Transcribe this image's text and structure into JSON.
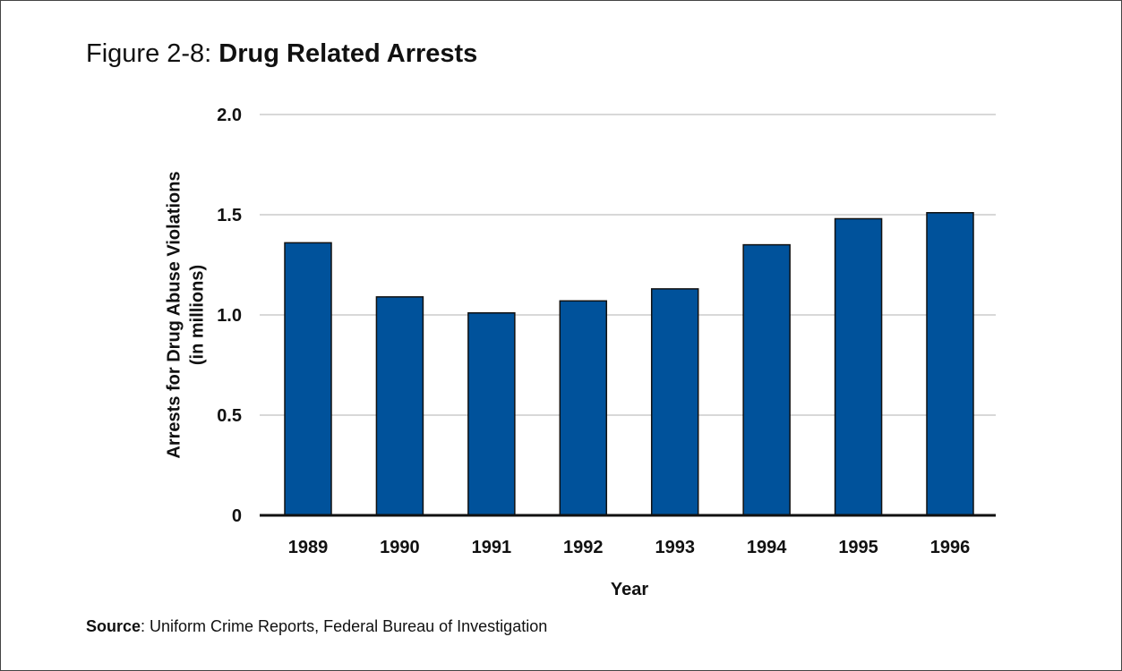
{
  "figure": {
    "prefix": "Figure 2-8:",
    "title": "Drug Related Arrests"
  },
  "source": {
    "label": "Source",
    "text": ": Uniform Crime Reports, Federal Bureau of Investigation"
  },
  "chart_data": {
    "type": "bar",
    "title": "Drug Related Arrests",
    "xlabel": "Year",
    "ylabel": "Arrests for Drug Abuse Violations",
    "ylabel_line2": "(in millions)",
    "categories": [
      "1989",
      "1990",
      "1991",
      "1992",
      "1993",
      "1994",
      "1995",
      "1996"
    ],
    "values": [
      1.36,
      1.09,
      1.01,
      1.07,
      1.13,
      1.35,
      1.48,
      1.51
    ],
    "ylim": [
      0,
      2.0
    ],
    "yticks": [
      0,
      0.5,
      1.0,
      1.5,
      2.0
    ],
    "ytick_labels": [
      "0",
      "0.5",
      "1.0",
      "1.5",
      "2.0"
    ],
    "grid": true,
    "legend": "none",
    "bar_color": "#00529b",
    "bar_edge_color": "#111111"
  }
}
